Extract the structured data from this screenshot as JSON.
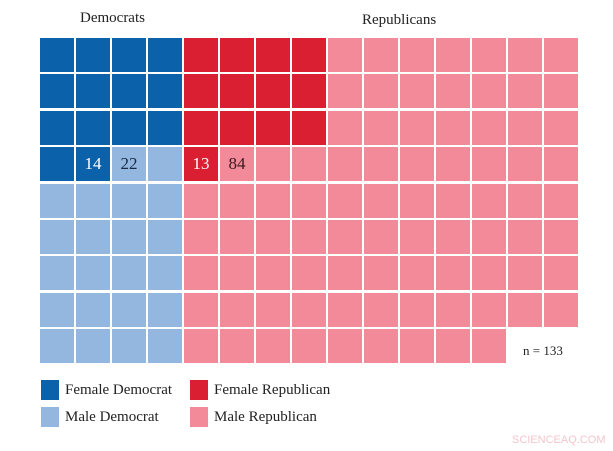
{
  "chart_data": {
    "type": "waffle",
    "columns": 15,
    "rows": 9,
    "groups": [
      {
        "name": "Democrats",
        "columns": 4,
        "segments": [
          {
            "name": "Female Democrat",
            "value": 14,
            "color": "#0b62aa"
          },
          {
            "name": "Male Democrat",
            "value": 22,
            "color": "#93b7df"
          }
        ]
      },
      {
        "name": "Republicans",
        "columns": 11,
        "segments": [
          {
            "name": "Female Republican",
            "value": 13,
            "color": "#db1f33"
          },
          {
            "name": "Male Republican",
            "value": 84,
            "color": "#f38a99"
          }
        ]
      }
    ],
    "n_label": "n = 133",
    "legend": [
      "Female Democrat",
      "Female Republican",
      "Male Democrat",
      "Male Republican"
    ],
    "legend_placement": "bottom-left"
  },
  "labels": {
    "dem": "Democrats",
    "rep": "Republicans",
    "fd": "14",
    "md": "22",
    "fr": "13",
    "mr": "84"
  },
  "watermark": "SCIENCEAQ.COM"
}
